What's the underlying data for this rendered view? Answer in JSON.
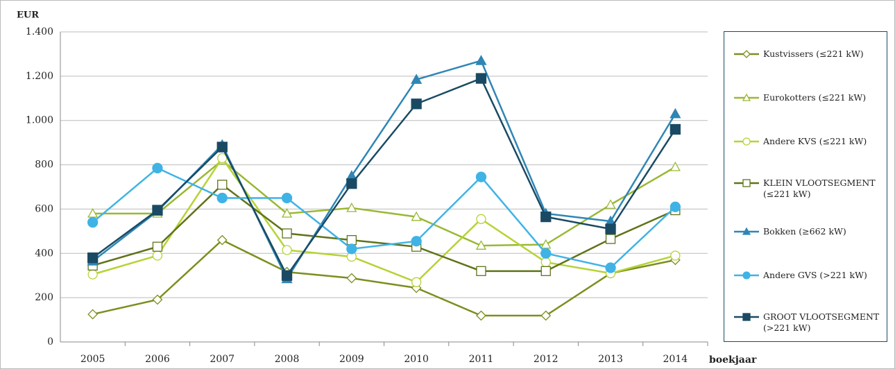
{
  "chart_data": {
    "type": "line",
    "y_label": "EUR",
    "x_label": "boekjaar",
    "categories": [
      "2005",
      "2006",
      "2007",
      "2008",
      "2009",
      "2010",
      "2011",
      "2012",
      "2013",
      "2014"
    ],
    "ylim": [
      0,
      1400
    ],
    "yticks": [
      0,
      200,
      400,
      600,
      800,
      {
        "value": 1000,
        "label": "1.000"
      },
      {
        "value": 1200,
        "label": "1.200"
      },
      {
        "value": 1400,
        "label": "1.400"
      }
    ],
    "grid": true,
    "legend": "right",
    "series": [
      {
        "name": "Kustvissers (≤221 kW)",
        "color": "#7a8f1e",
        "marker": "diamond",
        "filled": false,
        "values": [
          125,
          191,
          460,
          316,
          288,
          244,
          119,
          119,
          310,
          370
        ]
      },
      {
        "name": "Eurokotters (≤221 kW)",
        "color": "#99b833",
        "marker": "triangle",
        "filled": false,
        "values": [
          580,
          580,
          820,
          580,
          605,
          565,
          435,
          440,
          620,
          790
        ]
      },
      {
        "name": "Andere KVS (≤221 kW)",
        "color": "#b5d334",
        "marker": "circle",
        "filled": false,
        "values": [
          305,
          390,
          830,
          415,
          385,
          270,
          555,
          360,
          310,
          390
        ]
      },
      {
        "name": "KLEIN VLOOTSEGMENT (≤221 kW)",
        "color": "#5f7318",
        "marker": "square",
        "filled": false,
        "values": [
          345,
          430,
          710,
          490,
          460,
          430,
          320,
          320,
          465,
          595
        ]
      },
      {
        "name": "Bokken (≥662 kW)",
        "color": "#2e86b5",
        "marker": "triangle",
        "filled": true,
        "values": [
          365,
          590,
          890,
          285,
          750,
          1185,
          1270,
          580,
          545,
          1030
        ]
      },
      {
        "name": "Andere GVS (>221 kW)",
        "color": "#3fb3e6",
        "marker": "circle",
        "filled": true,
        "values": [
          540,
          785,
          650,
          650,
          420,
          455,
          745,
          400,
          335,
          610
        ]
      },
      {
        "name": "GROOT VLOOTSEGMENT (>221 kW)",
        "color": "#1a4a63",
        "marker": "square",
        "filled": true,
        "values": [
          380,
          595,
          880,
          300,
          715,
          1075,
          1190,
          565,
          510,
          960
        ]
      }
    ]
  }
}
